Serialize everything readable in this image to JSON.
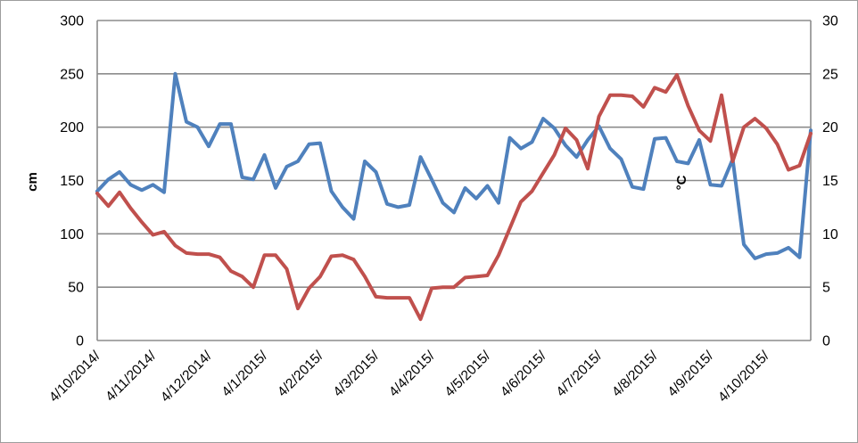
{
  "chart_data": {
    "type": "line",
    "title": "",
    "legend": "none",
    "grid": true,
    "x_labels": [
      "4/10/2014/",
      "4/11/2014/",
      "4/12/2014/",
      "4/1/2015/",
      "4/2/2015/",
      "4/3/2015/",
      "4/4/2015/",
      "4/5/2015/",
      "4/6/2015/",
      "4/7/2015/",
      "4/8/2015/",
      "4/9/2015/",
      "4/10/2015/"
    ],
    "x_label_every_n_points": 5,
    "left_axis": {
      "label": "cm",
      "min": 0,
      "max": 300,
      "ticks": [
        0,
        50,
        100,
        150,
        200,
        250,
        300
      ]
    },
    "right_axis": {
      "label": "°C",
      "min": 0,
      "max": 30,
      "ticks": [
        0,
        5,
        10,
        15,
        20,
        25,
        30
      ]
    },
    "series": [
      {
        "name": "cm",
        "axis": "left",
        "color": "#4F81BD",
        "values": [
          140,
          151,
          158,
          146,
          141,
          146,
          139,
          250,
          205,
          200,
          182,
          203,
          203,
          153,
          151,
          174,
          143,
          163,
          168,
          184,
          185,
          140,
          125,
          114,
          168,
          158,
          128,
          125,
          127,
          172,
          151,
          129,
          120,
          143,
          133,
          145,
          129,
          190,
          180,
          186,
          208,
          199,
          183,
          172,
          188,
          201,
          180,
          170,
          144,
          142,
          189,
          190,
          168,
          166,
          188,
          146,
          145,
          170,
          90,
          77,
          81,
          82,
          87,
          78,
          197
        ]
      },
      {
        "name": "°C",
        "axis": "right",
        "color": "#C0504D",
        "values": [
          13.8,
          12.6,
          13.9,
          12.4,
          11.1,
          9.9,
          10.2,
          8.9,
          8.2,
          8.1,
          8.1,
          7.8,
          6.5,
          6.0,
          5.0,
          8.0,
          8.0,
          6.7,
          3.0,
          4.9,
          6.0,
          7.9,
          8.0,
          7.6,
          6.0,
          4.1,
          4.0,
          4.0,
          4.0,
          2.0,
          4.9,
          5.0,
          5.0,
          5.9,
          6.0,
          6.1,
          8.0,
          10.5,
          13.0,
          14.0,
          15.7,
          17.4,
          19.9,
          18.8,
          16.1,
          21.0,
          23.0,
          23.0,
          22.9,
          21.9,
          23.7,
          23.3,
          24.9,
          22.0,
          19.7,
          18.7,
          23.0,
          16.8,
          20.0,
          20.8,
          19.9,
          18.4,
          16.0,
          16.4,
          19.4
        ]
      }
    ],
    "gridline_color": "#8C8C8C"
  }
}
